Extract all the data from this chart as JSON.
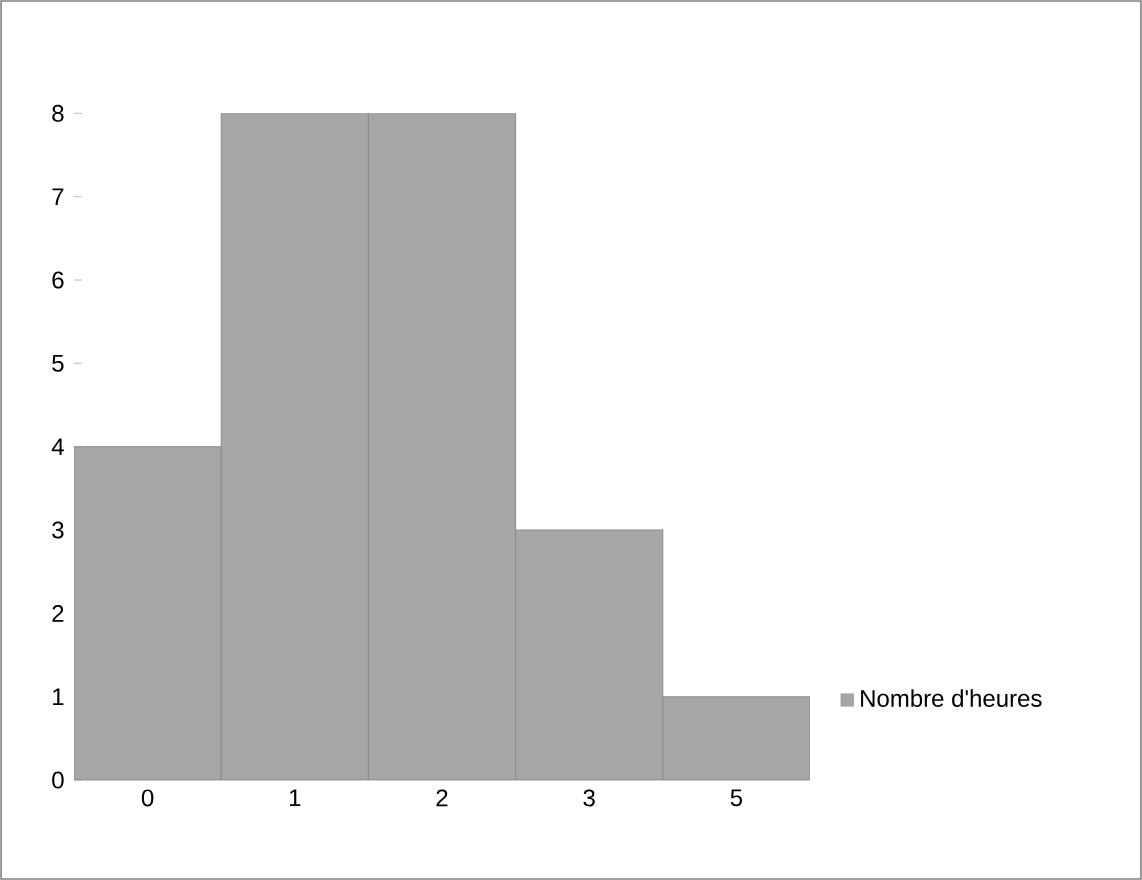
{
  "chart_data": {
    "type": "bar",
    "categories": [
      "0",
      "1",
      "2",
      "3",
      "5"
    ],
    "series": [
      {
        "name": "Nombre d'heures",
        "color": "#a6a6a6",
        "values": [
          4,
          8,
          8,
          3,
          1
        ]
      }
    ],
    "ylim": [
      0,
      8
    ],
    "yticks": [
      0,
      1,
      2,
      3,
      4,
      5,
      6,
      7,
      8
    ],
    "grid": false,
    "legend": "right"
  }
}
